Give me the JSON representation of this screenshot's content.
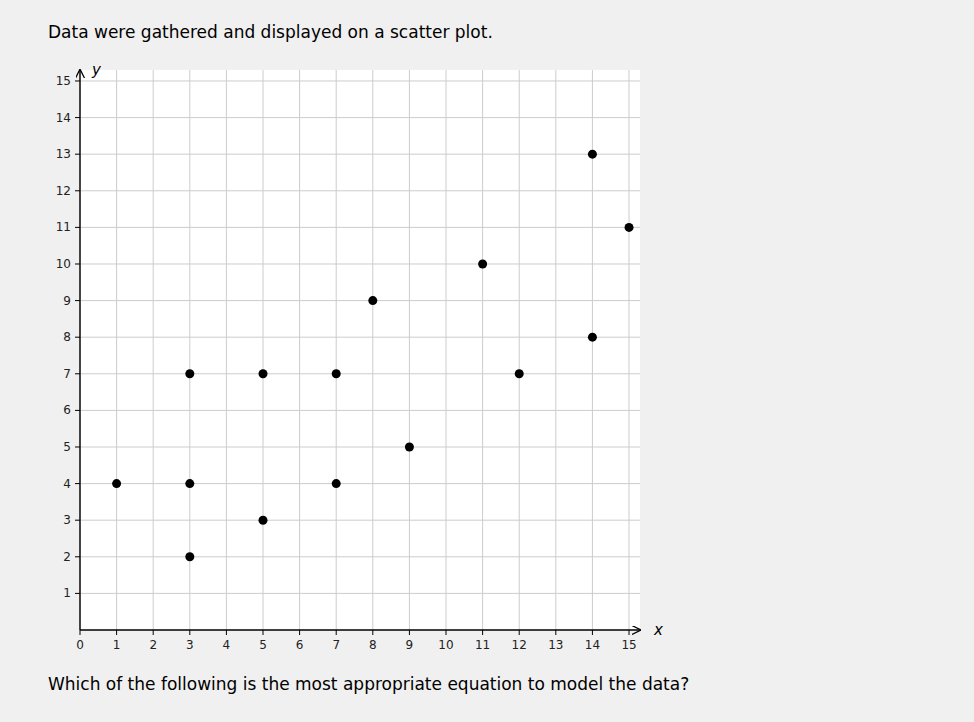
{
  "chart_data": {
    "type": "scatter",
    "title": "Data were gathered and displayed on a scatter plot.",
    "annotations": [
      "Which of the following is the most appropriate equation to model the data?"
    ],
    "xlabel": "x",
    "ylabel": "y",
    "x": [
      1,
      3,
      3,
      3,
      5,
      5,
      7,
      7,
      8,
      9,
      11,
      12,
      14,
      14,
      15
    ],
    "values": [
      4,
      7,
      4,
      2,
      7,
      3,
      7,
      4,
      9,
      5,
      10,
      7,
      13,
      8,
      11
    ],
    "color": "#000000",
    "xlim": [
      0,
      15.3
    ],
    "ylim": [
      0,
      15.3
    ],
    "xticks": [
      0,
      1,
      2,
      3,
      4,
      5,
      6,
      7,
      8,
      9,
      10,
      11,
      12,
      13,
      14,
      15
    ],
    "yticks": [
      1,
      2,
      3,
      4,
      5,
      6,
      7,
      8,
      9,
      10,
      11,
      12,
      13,
      14,
      15
    ],
    "grid": true
  }
}
